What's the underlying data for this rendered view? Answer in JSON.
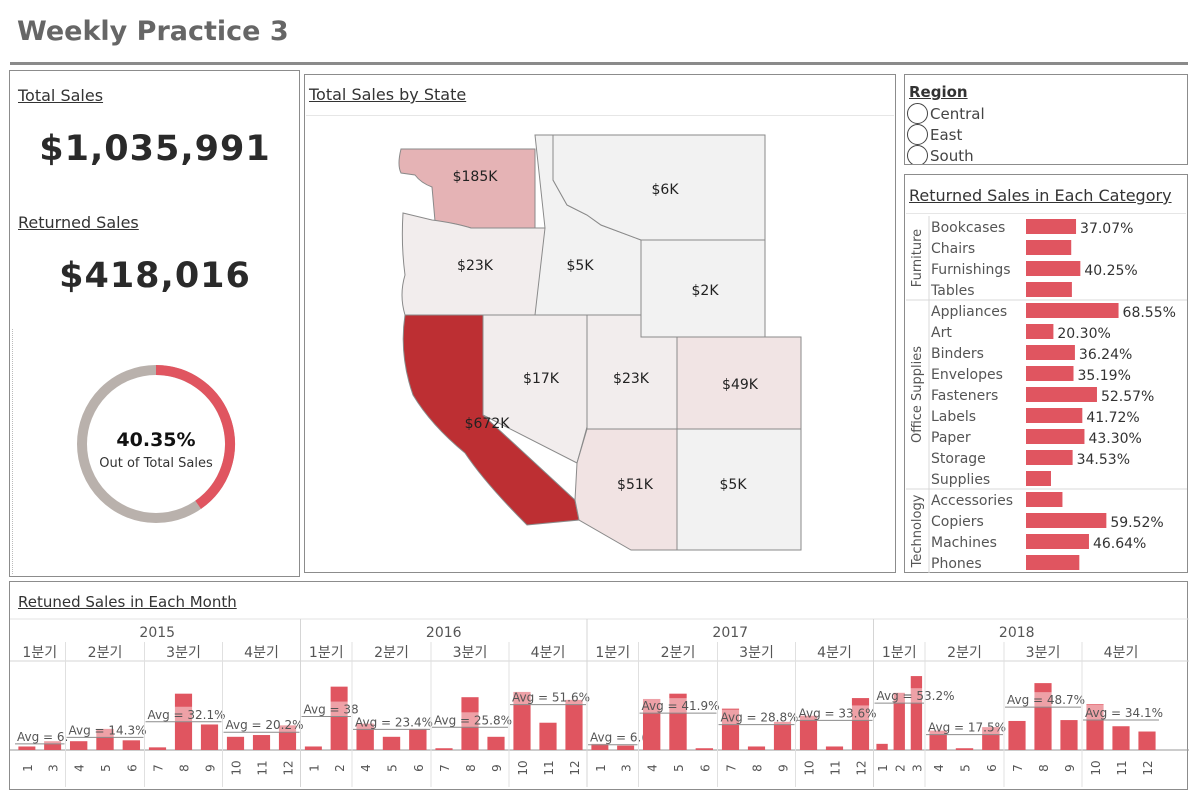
{
  "page": {
    "title": "Weekly Practice 3"
  },
  "kpis": {
    "total_sales_title": "Total Sales",
    "total_sales_value": "$1,035,991",
    "returned_sales_title": "Returned Sales",
    "returned_sales_value": "$418,016",
    "donut_pct": "40.35%",
    "donut_caption": "Out of Total Sales",
    "donut_fraction": 0.4035
  },
  "map": {
    "title": "Total Sales by State",
    "labels": [
      "$185K",
      "$6K",
      "$23K",
      "$5K",
      "$2K",
      "$17K",
      "$23K",
      "$49K",
      "$672K",
      "$51K",
      "$5K"
    ]
  },
  "region_filter": {
    "title": "Region",
    "options": [
      "Central",
      "East",
      "South"
    ]
  },
  "category_chart": {
    "title": "Returned Sales in Each Category",
    "groups": [
      "Furniture",
      "Office Supplies",
      "Technology"
    ],
    "items": [
      {
        "name": "Bookcases",
        "label": "37.07%",
        "value": 37.07
      },
      {
        "name": "Chairs",
        "label": "",
        "value": 33.5
      },
      {
        "name": "Furnishings",
        "label": "40.25%",
        "value": 40.25
      },
      {
        "name": "Tables",
        "label": "",
        "value": 34.0
      },
      {
        "name": "Appliances",
        "label": "68.55%",
        "value": 68.55
      },
      {
        "name": "Art",
        "label": "20.30%",
        "value": 20.3
      },
      {
        "name": "Binders",
        "label": "36.24%",
        "value": 36.24
      },
      {
        "name": "Envelopes",
        "label": "35.19%",
        "value": 35.19
      },
      {
        "name": "Fasteners",
        "label": "52.57%",
        "value": 52.57
      },
      {
        "name": "Labels",
        "label": "41.72%",
        "value": 41.72
      },
      {
        "name": "Paper",
        "label": "43.30%",
        "value": 43.3
      },
      {
        "name": "Storage",
        "label": "34.53%",
        "value": 34.53
      },
      {
        "name": "Supplies",
        "label": "",
        "value": 18.5
      },
      {
        "name": "Accessories",
        "label": "",
        "value": 27.0
      },
      {
        "name": "Copiers",
        "label": "59.52%",
        "value": 59.52
      },
      {
        "name": "Machines",
        "label": "46.64%",
        "value": 46.64
      },
      {
        "name": "Phones",
        "label": "",
        "value": 39.5
      }
    ]
  },
  "chart_data": {
    "type": "bar",
    "title": "Retuned Sales in Each Month",
    "ylim": [
      0,
      100
    ],
    "years": [
      "2015",
      "2016",
      "2017",
      "2018"
    ],
    "quarter_labels": [
      "1분기",
      "2분기",
      "3분기",
      "4분기"
    ],
    "quarters": [
      {
        "months": [
          "1",
          "3"
        ],
        "values": [
          4,
          10
        ],
        "avg": 6.9,
        "avg_label": "Avg = 6."
      },
      {
        "months": [
          "4",
          "5",
          "6"
        ],
        "values": [
          10,
          24,
          11
        ],
        "avg": 14.3,
        "avg_label": "Avg = 14.3%"
      },
      {
        "months": [
          "7",
          "8",
          "9"
        ],
        "values": [
          3,
          64,
          29
        ],
        "avg": 32.1,
        "avg_label": "Avg = 32.1%"
      },
      {
        "months": [
          "10",
          "11",
          "12"
        ],
        "values": [
          15,
          17,
          28
        ],
        "avg": 20.2,
        "avg_label": "Avg = 20.2%"
      },
      {
        "months": [
          "1",
          "2"
        ],
        "values": [
          4,
          72
        ],
        "avg": 38,
        "avg_label": "Avg = 38"
      },
      {
        "months": [
          "4",
          "5",
          "6"
        ],
        "values": [
          30,
          15,
          24
        ],
        "avg": 23.4,
        "avg_label": "Avg = 23.4%"
      },
      {
        "months": [
          "7",
          "8",
          "9"
        ],
        "values": [
          2,
          60,
          15
        ],
        "avg": 25.8,
        "avg_label": "Avg = 25.8%"
      },
      {
        "months": [
          "10",
          "11",
          "12"
        ],
        "values": [
          66,
          31,
          57
        ],
        "avg": 51.6,
        "avg_label": "Avg = 51.6%"
      },
      {
        "months": [
          "1",
          "3"
        ],
        "values": [
          7,
          5
        ],
        "avg": 6.0,
        "avg_label": "Avg = 6.("
      },
      {
        "months": [
          "4",
          "5",
          "6"
        ],
        "values": [
          58,
          64,
          2
        ],
        "avg": 41.9,
        "avg_label": "Avg = 41.9%"
      },
      {
        "months": [
          "7",
          "8",
          "9"
        ],
        "values": [
          47,
          4,
          32
        ],
        "avg": 28.8,
        "avg_label": "Avg = 28.8%"
      },
      {
        "months": [
          "10",
          "11",
          "12"
        ],
        "values": [
          39,
          4,
          59
        ],
        "avg": 33.6,
        "avg_label": "Avg = 33.6%"
      },
      {
        "months": [
          "1",
          "2",
          "3"
        ],
        "values": [
          7,
          65,
          84
        ],
        "avg": 53.2,
        "avg_label": "Avg = 53.2%"
      },
      {
        "months": [
          "4",
          "5",
          "6"
        ],
        "values": [
          22,
          2,
          26
        ],
        "avg": 17.5,
        "avg_label": "Avg = 17.5%"
      },
      {
        "months": [
          "7",
          "8",
          "9"
        ],
        "values": [
          33,
          76,
          34
        ],
        "avg": 48.7,
        "avg_label": "Avg = 48.7%"
      },
      {
        "months": [
          "10",
          "11",
          "12"
        ],
        "values": [
          52,
          27,
          21
        ],
        "avg": 34.1,
        "avg_label": "Avg = 34.1%"
      }
    ]
  },
  "colors": {
    "bar": "#e05560",
    "bar_light": "#eba6ab",
    "donut_gray": "#b9b1ac",
    "map_dark": "#bd2f33"
  }
}
